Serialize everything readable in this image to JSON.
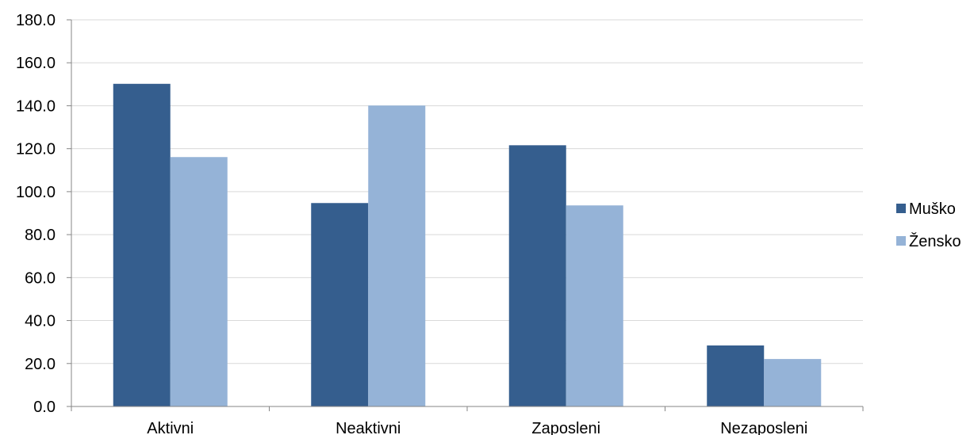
{
  "chart_data": {
    "type": "bar",
    "categories": [
      "Aktivni",
      "Neaktivni",
      "Zaposleni",
      "Nezaposleni"
    ],
    "series": [
      {
        "name": "Muško",
        "color": "#355E8E",
        "values": [
          150.2,
          94.7,
          121.6,
          28.4
        ]
      },
      {
        "name": "Žensko",
        "color": "#95B3D7",
        "values": [
          116.1,
          140.1,
          93.6,
          22.1
        ]
      }
    ],
    "ylim": [
      0,
      180
    ],
    "yticks": [
      "0.0",
      "20.0",
      "40.0",
      "60.0",
      "80.0",
      "100.0",
      "120.0",
      "140.0",
      "160.0",
      "180.0"
    ],
    "grid": true,
    "legend_position": "right"
  }
}
